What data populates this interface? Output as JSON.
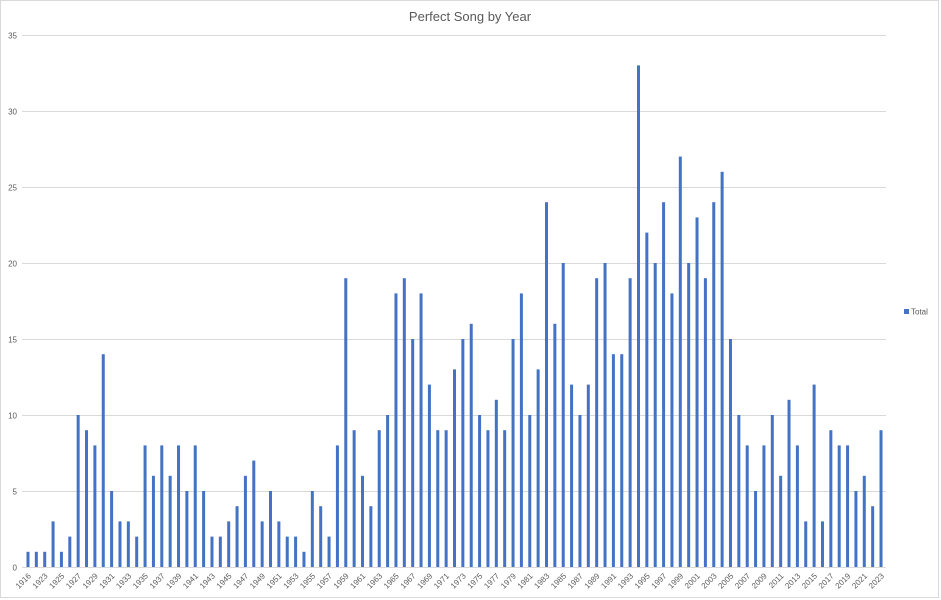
{
  "chart_data": {
    "type": "bar",
    "title": "Perfect Song by Year",
    "xlabel": "",
    "ylabel": "",
    "categories": [
      "1916",
      "",
      "1923",
      "",
      "1925",
      "",
      "1927",
      "",
      "1929",
      "",
      "1931",
      "",
      "1933",
      "",
      "1935",
      "",
      "1937",
      "",
      "1939",
      "",
      "1941",
      "",
      "1943",
      "",
      "1945",
      "",
      "1947",
      "",
      "1949",
      "",
      "1951",
      "",
      "1953",
      "",
      "1955",
      "",
      "1957",
      "",
      "1959",
      "",
      "1961",
      "",
      "1963",
      "",
      "1965",
      "",
      "1967",
      "",
      "1969",
      "",
      "1971",
      "",
      "1973",
      "",
      "1975",
      "",
      "1977",
      "",
      "1979",
      "",
      "1981",
      "",
      "1983",
      "",
      "1985",
      "",
      "1987",
      "",
      "1989",
      "",
      "1991",
      "",
      "1993",
      "",
      "1995",
      "",
      "1997",
      "",
      "1999",
      "",
      "2001",
      "",
      "2003",
      "",
      "2005",
      "",
      "2007",
      "",
      "2009",
      "",
      "2011",
      "",
      "2013",
      "",
      "2015",
      "",
      "2017",
      "",
      "2019",
      "",
      "2021",
      "",
      "2023"
    ],
    "series": [
      {
        "name": "Total",
        "color": "#4472c4",
        "values": [
          1,
          1,
          1,
          3,
          1,
          2,
          10,
          9,
          8,
          14,
          5,
          3,
          3,
          2,
          8,
          6,
          8,
          6,
          8,
          5,
          8,
          5,
          2,
          2,
          3,
          4,
          6,
          7,
          3,
          5,
          3,
          2,
          2,
          1,
          5,
          4,
          2,
          8,
          19,
          9,
          6,
          4,
          9,
          10,
          18,
          19,
          15,
          18,
          12,
          9,
          9,
          13,
          15,
          16,
          10,
          9,
          11,
          9,
          15,
          18,
          10,
          13,
          24,
          16,
          20,
          12,
          10,
          12,
          19,
          20,
          14,
          14,
          19,
          33,
          22,
          20,
          24,
          18,
          27,
          20,
          23,
          19,
          24,
          26,
          15,
          10,
          8,
          5,
          8,
          10,
          6,
          11,
          8,
          3,
          12,
          3,
          9,
          8,
          8,
          5,
          6,
          4,
          9
        ]
      }
    ],
    "ylim": [
      0,
      35
    ],
    "yticks": [
      0,
      5,
      10,
      15,
      20,
      25,
      30,
      35
    ],
    "grid": true,
    "legend": "right",
    "colors": {
      "bar": "#4472c4",
      "gridline": "#d9d9d9",
      "text": "#595959",
      "background": "#ffffff"
    }
  }
}
